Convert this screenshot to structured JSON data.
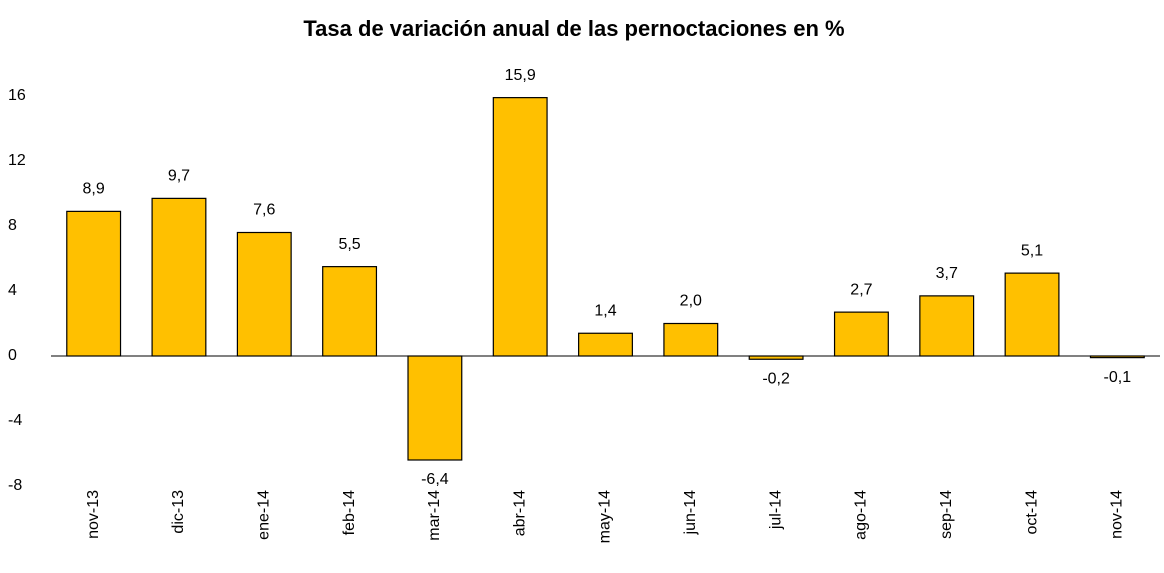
{
  "chart_data": {
    "type": "bar",
    "title": "Tasa de variación anual de las pernoctaciones en %",
    "categories": [
      "nov-13",
      "dic-13",
      "ene-14",
      "feb-14",
      "mar-14",
      "abr-14",
      "may-14",
      "jun-14",
      "jul-14",
      "ago-14",
      "sep-14",
      "oct-14",
      "nov-14"
    ],
    "values": [
      8.9,
      9.7,
      7.6,
      5.5,
      -6.4,
      15.9,
      1.4,
      2.0,
      -0.2,
      2.7,
      3.7,
      5.1,
      -0.1
    ],
    "value_labels": [
      "8,9",
      "9,7",
      "7,6",
      "5,5",
      "-6,4",
      "15,9",
      "1,4",
      "2,0",
      "-0,2",
      "2,7",
      "3,7",
      "5,1",
      "-0,1"
    ],
    "color": "#FFC000",
    "ylim": [
      -8,
      16
    ],
    "yticks": [
      -8,
      -4,
      0,
      4,
      8,
      12,
      16
    ],
    "grid": false
  }
}
